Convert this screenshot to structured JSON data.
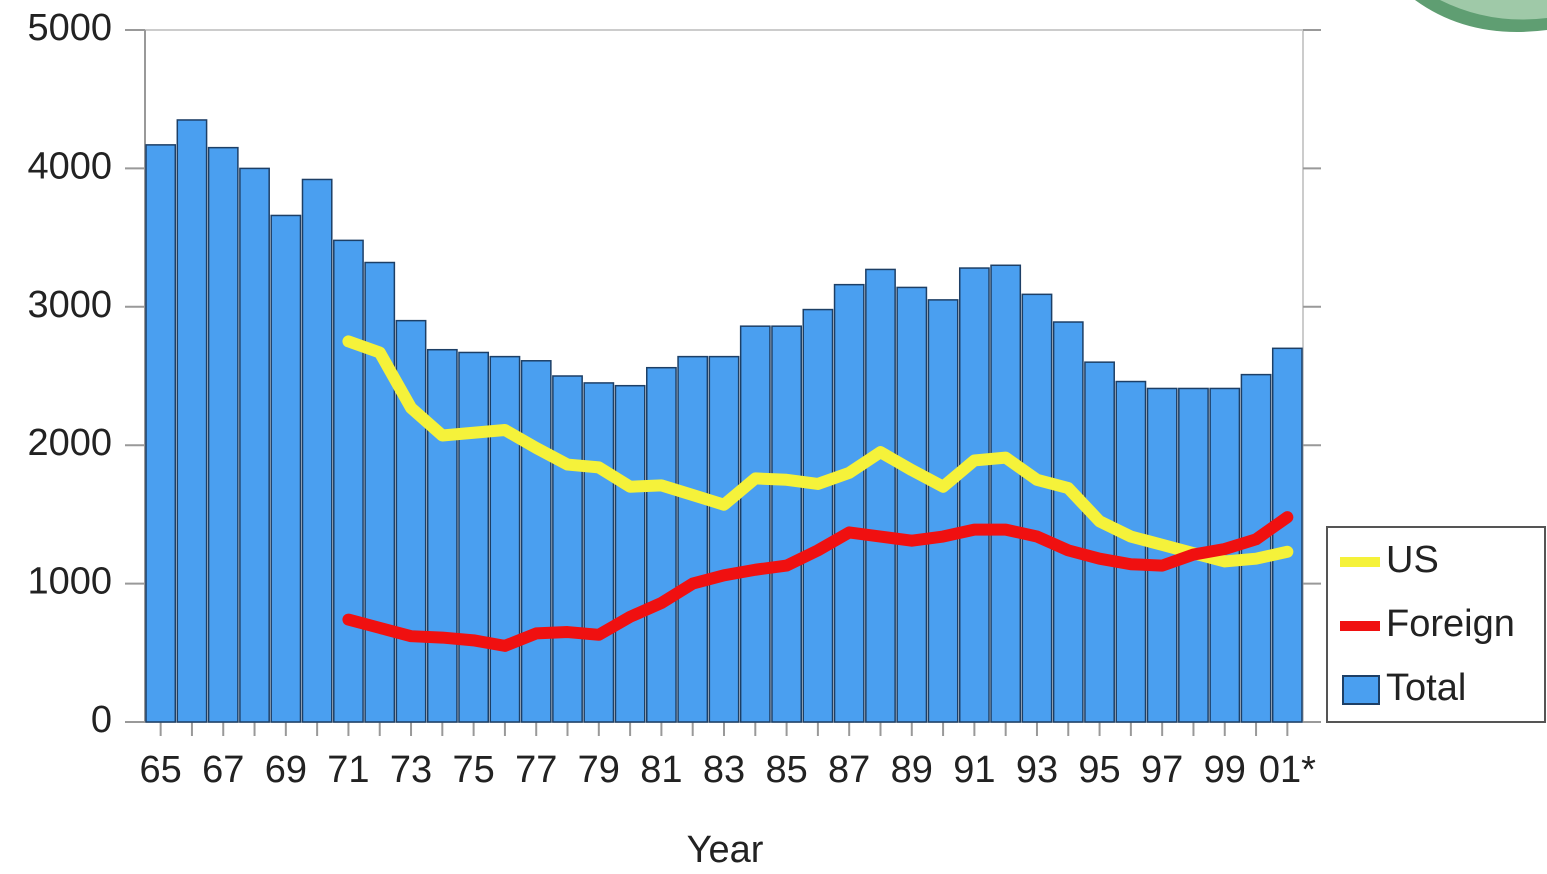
{
  "chart_data": {
    "type": "bar",
    "xlabel": "Year",
    "categories": [
      "65",
      null,
      "67",
      null,
      "69",
      null,
      "71",
      null,
      "73",
      null,
      "75",
      null,
      "77",
      null,
      "79",
      null,
      "81",
      null,
      "83",
      null,
      "85",
      null,
      "87",
      null,
      "89",
      null,
      "91",
      null,
      "93",
      null,
      "95",
      null,
      "97",
      null,
      "99",
      null,
      "01*"
    ],
    "series": [
      {
        "name": "Total",
        "type": "bar",
        "color": "#4a9ff0",
        "values": [
          4170,
          4350,
          4150,
          4000,
          3660,
          3920,
          3480,
          3320,
          2900,
          2690,
          2670,
          2640,
          2610,
          2500,
          2450,
          2430,
          2560,
          2640,
          2640,
          2860,
          2860,
          2980,
          3160,
          3270,
          3140,
          3050,
          3280,
          3300,
          3090,
          2890,
          2600,
          2460,
          2410,
          2410,
          2410,
          2510,
          2700
        ]
      },
      {
        "name": "US",
        "type": "line",
        "color": "#f5f23a",
        "values": [
          null,
          null,
          null,
          null,
          null,
          null,
          2750,
          2670,
          2270,
          2070,
          2090,
          2110,
          1980,
          1860,
          1840,
          1700,
          1710,
          1640,
          1570,
          1760,
          1750,
          1720,
          1800,
          1950,
          1820,
          1700,
          1890,
          1910,
          1750,
          1690,
          1450,
          1340,
          1280,
          1220,
          1160,
          1180,
          1230
        ]
      },
      {
        "name": "Foreign",
        "type": "line",
        "color": "#f01010",
        "values": [
          null,
          null,
          null,
          null,
          null,
          null,
          740,
          680,
          620,
          610,
          590,
          550,
          640,
          650,
          630,
          760,
          860,
          1000,
          1060,
          1100,
          1130,
          1240,
          1370,
          1340,
          1310,
          1340,
          1390,
          1390,
          1340,
          1240,
          1180,
          1140,
          1130,
          1210,
          1250,
          1320,
          1480
        ]
      }
    ],
    "ylim": [
      0,
      5000
    ],
    "yticks": [
      0,
      1000,
      2000,
      3000,
      4000,
      5000
    ]
  }
}
